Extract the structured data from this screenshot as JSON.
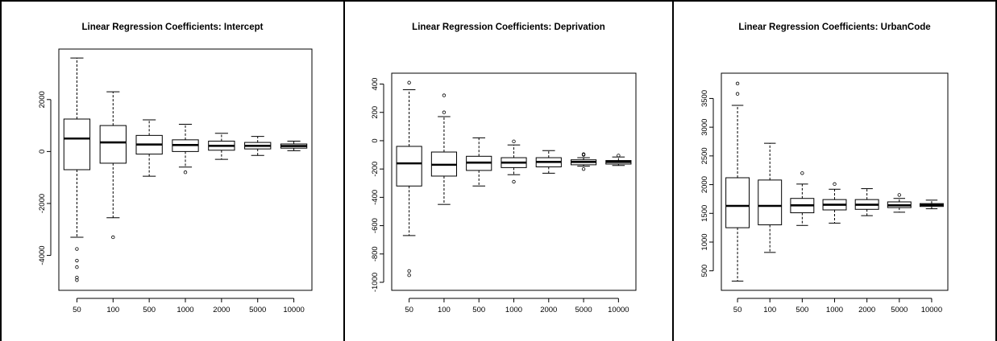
{
  "chart_data": [
    {
      "type": "box",
      "title": "Linear Regression Coefficients: Intercept",
      "categories": [
        "50",
        "100",
        "500",
        "1000",
        "2000",
        "5000",
        "10000"
      ],
      "ylim": [
        -5000,
        3600
      ],
      "yticks": [
        -4000,
        -2000,
        0,
        2000
      ],
      "ytick_labels": [
        "-4000",
        "-2000",
        "0",
        "2000"
      ],
      "boxes": [
        {
          "whisker_low": -3300,
          "q1": -700,
          "median": 500,
          "q3": 1250,
          "whisker_high": 3600,
          "outliers": [
            -3750,
            -4200,
            -4450,
            -4850,
            -4950
          ]
        },
        {
          "whisker_low": -2550,
          "q1": -450,
          "median": 350,
          "q3": 1000,
          "whisker_high": 2300,
          "outliers": [
            -3300
          ]
        },
        {
          "whisker_low": -950,
          "q1": -100,
          "median": 270,
          "q3": 620,
          "whisker_high": 1220,
          "outliers": []
        },
        {
          "whisker_low": -600,
          "q1": 0,
          "median": 250,
          "q3": 450,
          "whisker_high": 1050,
          "outliers": [
            -800
          ]
        },
        {
          "whisker_low": -300,
          "q1": 50,
          "median": 220,
          "q3": 400,
          "whisker_high": 700,
          "outliers": []
        },
        {
          "whisker_low": -150,
          "q1": 100,
          "median": 220,
          "q3": 350,
          "whisker_high": 580,
          "outliers": []
        },
        {
          "whisker_low": 30,
          "q1": 130,
          "median": 210,
          "q3": 290,
          "whisker_high": 400,
          "outliers": []
        }
      ]
    },
    {
      "type": "box",
      "title": "Linear Regression Coefficients: Deprivation",
      "categories": [
        "50",
        "100",
        "500",
        "1000",
        "2000",
        "5000",
        "10000"
      ],
      "ylim": [
        -1000,
        420
      ],
      "yticks": [
        -1000,
        -800,
        -600,
        -400,
        -200,
        0,
        200,
        400
      ],
      "ytick_labels": [
        "-1000",
        "-800",
        "-600",
        "-400",
        "-200",
        "0",
        "200",
        "400"
      ],
      "boxes": [
        {
          "whisker_low": -670,
          "q1": -320,
          "median": -160,
          "q3": -40,
          "whisker_high": 360,
          "outliers": [
            410,
            -920,
            -950
          ]
        },
        {
          "whisker_low": -450,
          "q1": -250,
          "median": -170,
          "q3": -80,
          "whisker_high": 170,
          "outliers": [
            320,
            200
          ]
        },
        {
          "whisker_low": -320,
          "q1": -210,
          "median": -155,
          "q3": -110,
          "whisker_high": 20,
          "outliers": []
        },
        {
          "whisker_low": -240,
          "q1": -190,
          "median": -155,
          "q3": -120,
          "whisker_high": -30,
          "outliers": [
            -5,
            -290
          ]
        },
        {
          "whisker_low": -230,
          "q1": -185,
          "median": -150,
          "q3": -120,
          "whisker_high": -70,
          "outliers": []
        },
        {
          "whisker_low": -180,
          "q1": -170,
          "median": -150,
          "q3": -135,
          "whisker_high": -120,
          "outliers": [
            -95,
            -100,
            -200
          ]
        },
        {
          "whisker_low": -175,
          "q1": -165,
          "median": -150,
          "q3": -140,
          "whisker_high": -115,
          "outliers": [
            -105
          ]
        }
      ]
    },
    {
      "type": "box",
      "title": "Linear Regression Coefficients: UrbanCode",
      "categories": [
        "50",
        "100",
        "500",
        "1000",
        "2000",
        "5000",
        "10000"
      ],
      "ylim": [
        300,
        3800
      ],
      "yticks": [
        500,
        1000,
        1500,
        2000,
        2500,
        3000,
        3500
      ],
      "ytick_labels": [
        "500",
        "1000",
        "1500",
        "2000",
        "2500",
        "3000",
        "3500"
      ],
      "boxes": [
        {
          "whisker_low": 320,
          "q1": 1250,
          "median": 1630,
          "q3": 2120,
          "whisker_high": 3380,
          "outliers": [
            3760,
            3580
          ]
        },
        {
          "whisker_low": 820,
          "q1": 1300,
          "median": 1630,
          "q3": 2080,
          "whisker_high": 2720,
          "outliers": []
        },
        {
          "whisker_low": 1290,
          "q1": 1510,
          "median": 1640,
          "q3": 1760,
          "whisker_high": 2010,
          "outliers": [
            2200
          ]
        },
        {
          "whisker_low": 1330,
          "q1": 1560,
          "median": 1650,
          "q3": 1740,
          "whisker_high": 1920,
          "outliers": [
            2010
          ]
        },
        {
          "whisker_low": 1460,
          "q1": 1570,
          "median": 1650,
          "q3": 1740,
          "whisker_high": 1930,
          "outliers": []
        },
        {
          "whisker_low": 1520,
          "q1": 1600,
          "median": 1640,
          "q3": 1700,
          "whisker_high": 1760,
          "outliers": [
            1820
          ]
        },
        {
          "whisker_low": 1580,
          "q1": 1620,
          "median": 1645,
          "q3": 1670,
          "whisker_high": 1730,
          "outliers": []
        }
      ]
    }
  ]
}
